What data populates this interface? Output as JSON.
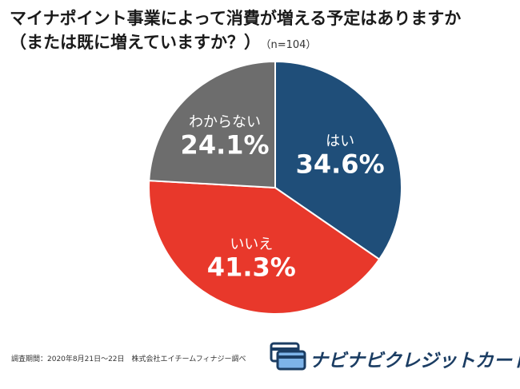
{
  "header": {
    "title_line1": "マイナポイント事業によって消費が増える予定はありますか",
    "title_line2": "（または既に増えていますか？）",
    "sample_size": "（n=104）"
  },
  "chart_data": {
    "type": "pie",
    "title": "マイナポイント事業によって消費が増える予定はありますか（または既に増えていますか？）",
    "slices": [
      {
        "label": "はい",
        "value": 34.6,
        "display": "34.6%",
        "color": "#1f4e79"
      },
      {
        "label": "いいえ",
        "value": 41.3,
        "display": "41.3%",
        "color": "#e8382b"
      },
      {
        "label": "わからない",
        "value": 24.1,
        "display": "24.1%",
        "color": "#6d6d6d"
      }
    ],
    "start": "12 o'clock",
    "direction": "clockwise",
    "legend": "none (labels inside slices)"
  },
  "footer": {
    "note": "調査期間：2020年8月21日〜22日　株式会社エイチームフィナジー調べ",
    "logo_text": "ナビナビクレジットカード",
    "logo_icon": "credit-card-icon",
    "logo_color": "#1b3d63"
  }
}
